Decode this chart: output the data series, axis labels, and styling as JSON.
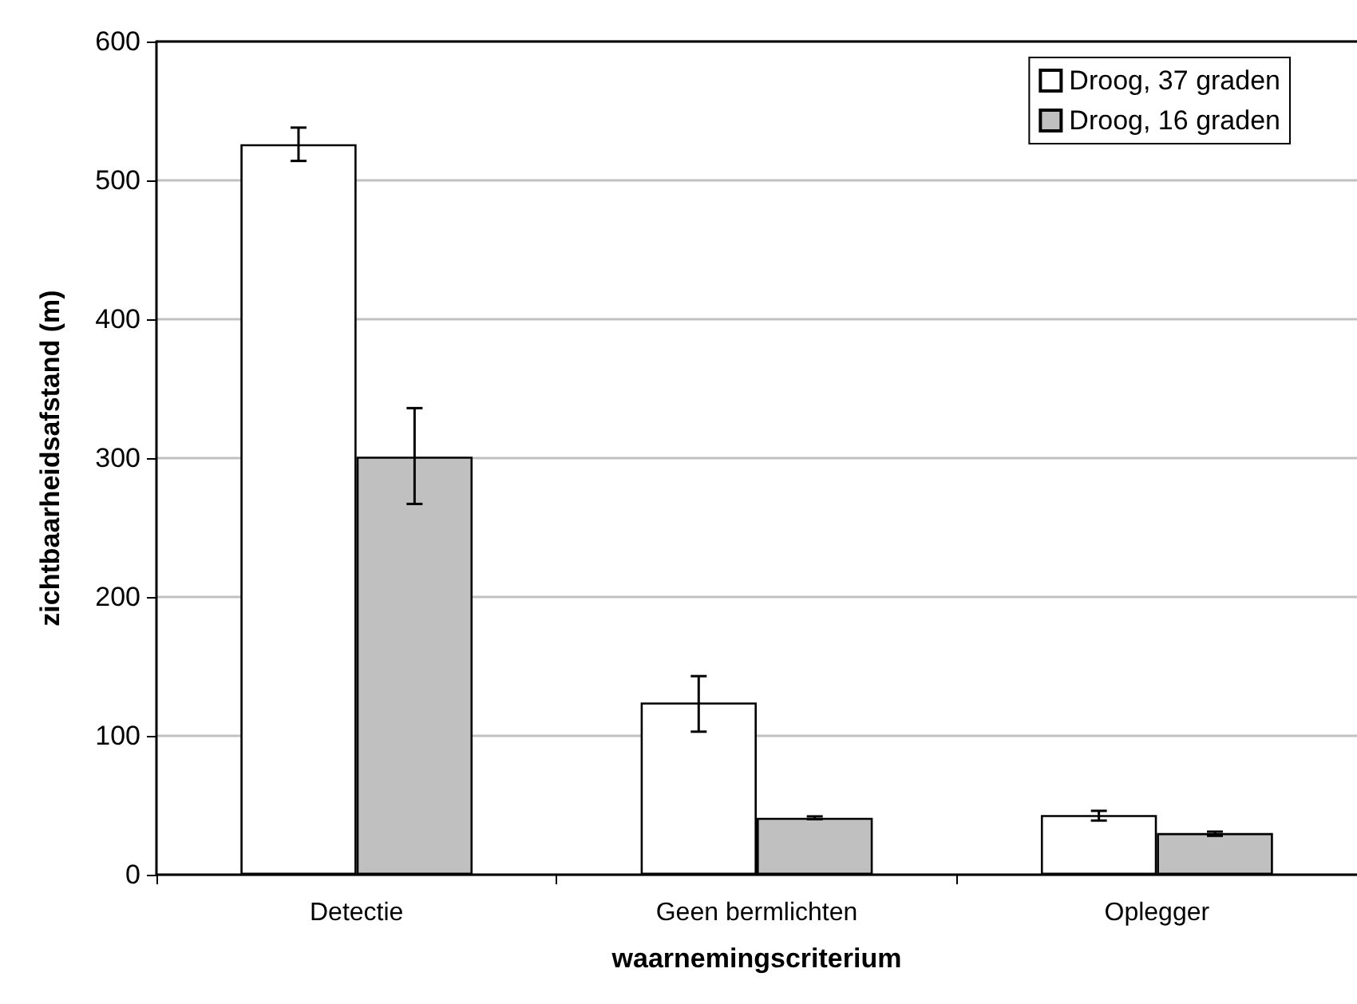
{
  "chart_data": {
    "type": "bar",
    "xlabel": "waarnemingscriterium",
    "ylabel": "zichtbaarheidsafstand (m)",
    "categories": [
      "Detectie",
      "Geen bermlichten",
      "Oplegger"
    ],
    "series": [
      {
        "name": "Droog, 37 graden",
        "color": "#ffffff",
        "values": [
          526,
          124,
          43
        ],
        "errors": [
          [
            514,
            538
          ],
          [
            103,
            143
          ],
          [
            39,
            46
          ]
        ]
      },
      {
        "name": "Droog, 16 graden",
        "color": "#c0c0c0",
        "values": [
          301,
          41,
          30
        ],
        "errors": [
          [
            267,
            336
          ],
          [
            40,
            42
          ],
          [
            28,
            31
          ]
        ]
      }
    ],
    "ylim": [
      0,
      600
    ],
    "yticks": [
      0,
      100,
      200,
      300,
      400,
      500,
      600
    ],
    "grid": "y",
    "legend": "top right"
  }
}
